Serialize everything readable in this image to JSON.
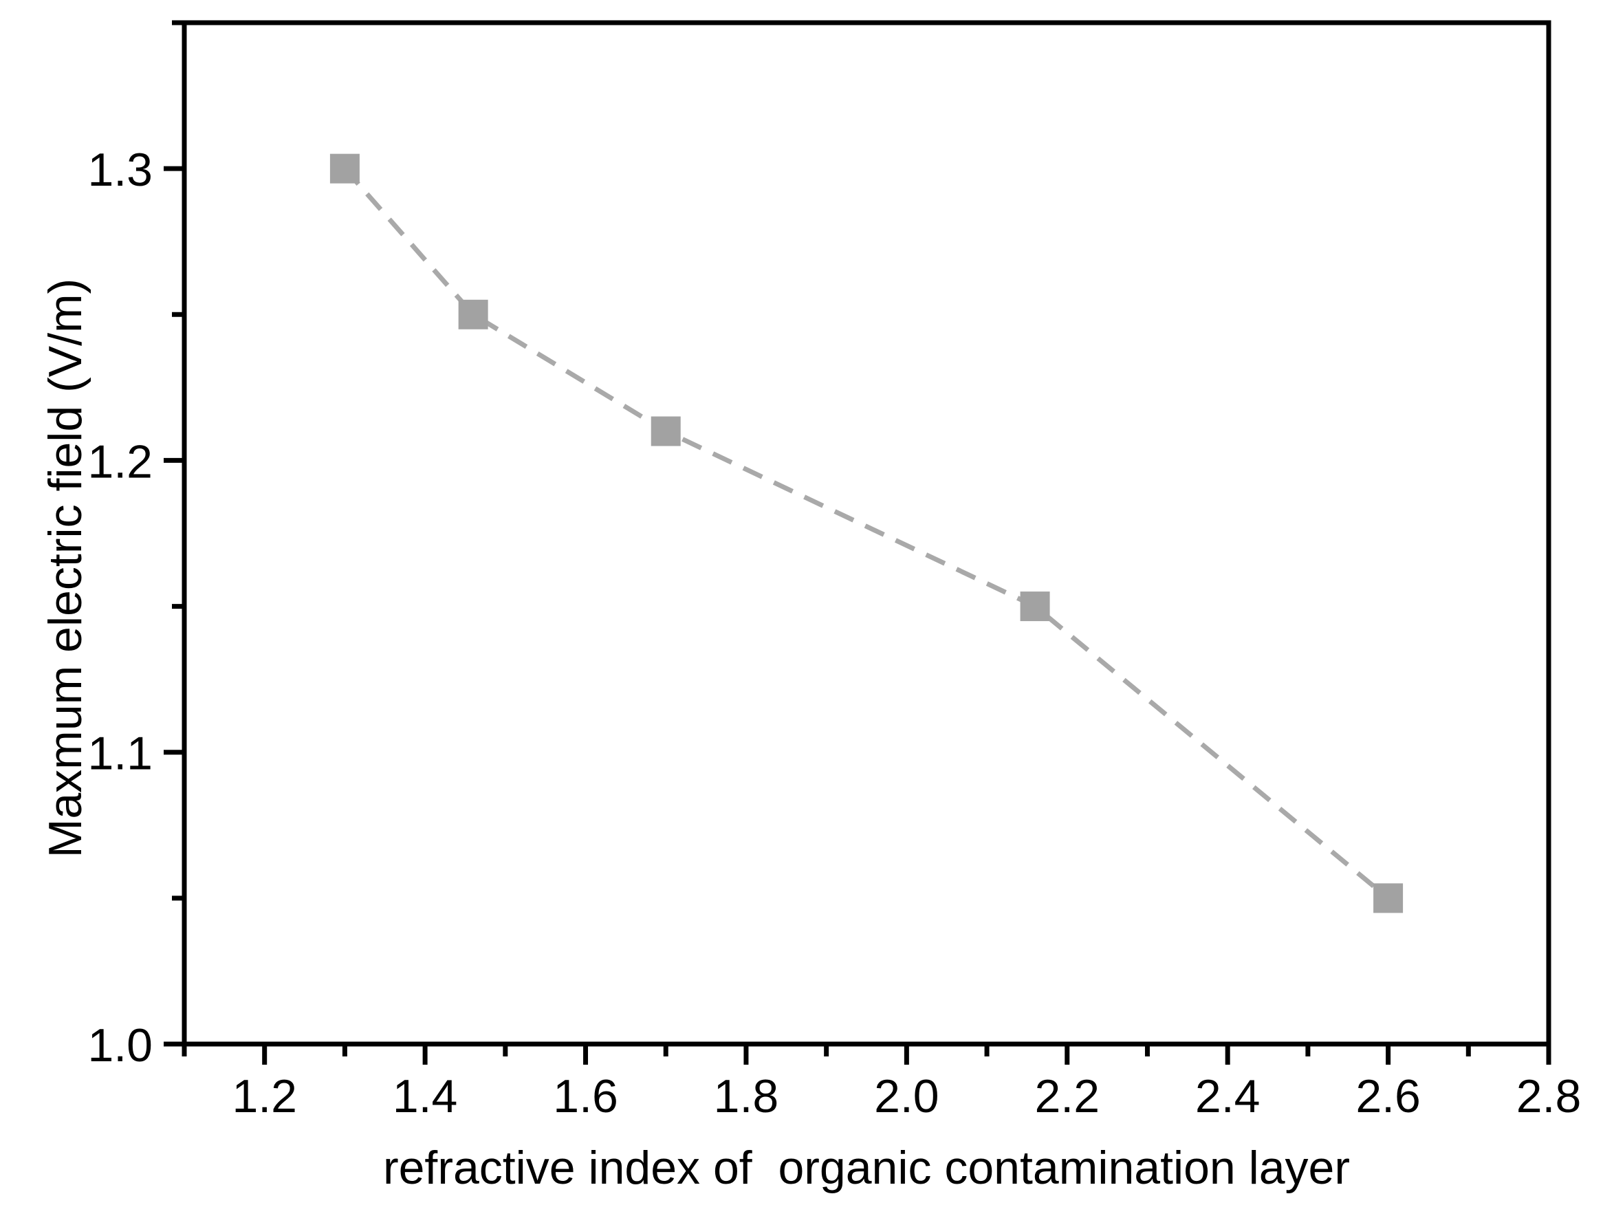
{
  "chart_data": {
    "type": "line",
    "title": "",
    "xlabel": "refractive index of  organic contamination layer",
    "ylabel": "Maxmum electric field (V/m)",
    "series": [
      {
        "name": "maximum-electric-field",
        "x": [
          1.3,
          1.46,
          1.7,
          2.16,
          2.6
        ],
        "y": [
          1.3,
          1.25,
          1.21,
          1.15,
          1.05
        ]
      }
    ],
    "xlim": [
      1.1,
      2.8
    ],
    "ylim": [
      1.0,
      1.35
    ],
    "x_tick_labels": [
      "1.2",
      "1.4",
      "1.6",
      "1.8",
      "2.0",
      "2.2",
      "2.4",
      "2.6",
      "2.8"
    ],
    "x_major_ticks": [
      1.2,
      1.4,
      1.6,
      1.8,
      2.0,
      2.2,
      2.4,
      2.6,
      2.8
    ],
    "x_minor_ticks": [
      1.1,
      1.3,
      1.5,
      1.7,
      1.9,
      2.1,
      2.3,
      2.5,
      2.7
    ],
    "y_tick_labels": [
      "1.0",
      "1.1",
      "1.2",
      "1.3"
    ],
    "y_major_ticks": [
      1.0,
      1.1,
      1.2,
      1.3
    ],
    "y_minor_ticks": [
      1.05,
      1.15,
      1.25,
      1.35
    ],
    "grid": false,
    "legend": "none",
    "colors": {
      "background": "#ffffff",
      "frame": "#000000",
      "text": "#000000",
      "marker": "#a2a2a2",
      "line": "#a9a9a9"
    },
    "marker_shape": "square",
    "line_style": "dashed"
  }
}
